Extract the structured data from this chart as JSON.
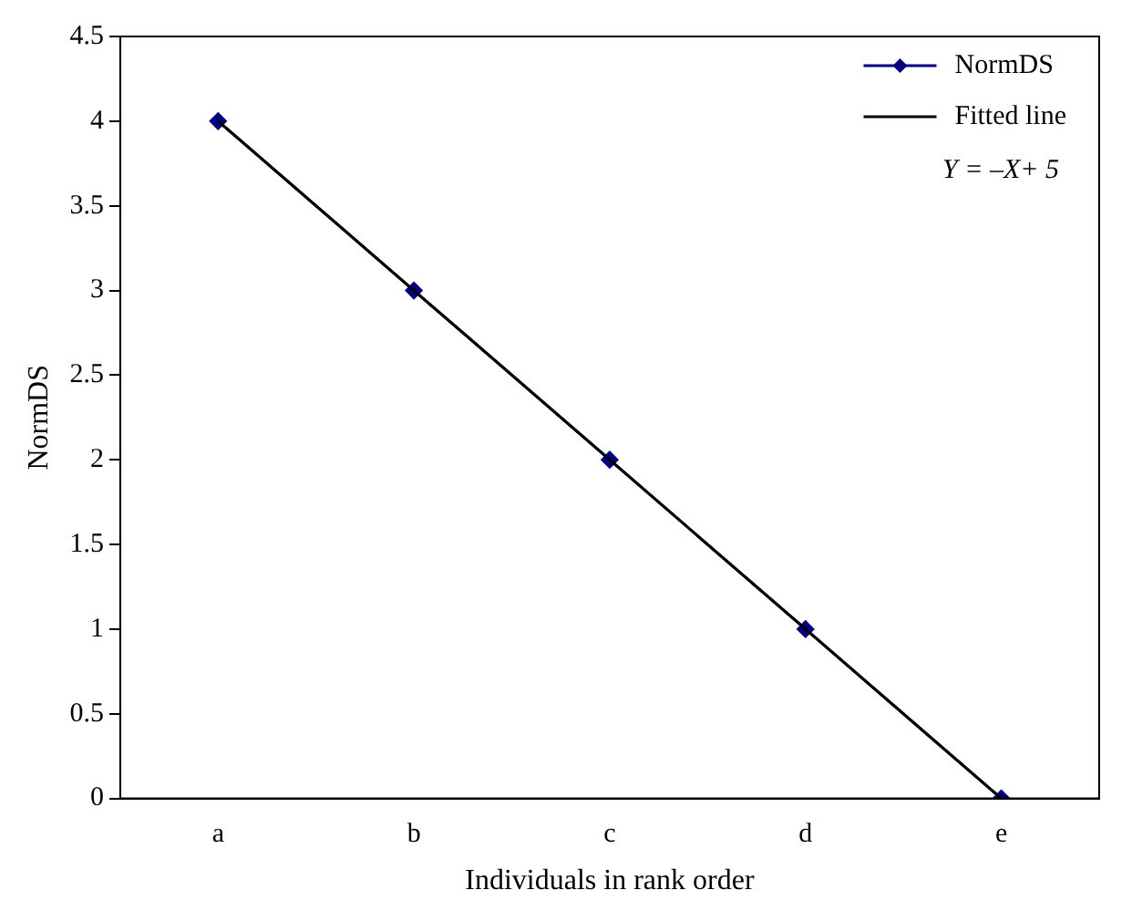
{
  "chart_data": {
    "type": "line",
    "xlabel": "Individuals in rank order",
    "ylabel": "NormDS",
    "categories": [
      "a",
      "b",
      "c",
      "d",
      "e"
    ],
    "series": [
      {
        "name": "NormDS",
        "color": "#000080",
        "values": [
          4,
          3,
          2,
          1,
          0
        ],
        "marker": "diamond"
      },
      {
        "name": "Fitted line",
        "color": "#000000",
        "values": [
          4,
          3,
          2,
          1,
          0
        ],
        "marker": "none"
      }
    ],
    "ylim": [
      0,
      4.5
    ],
    "yticks": [
      0,
      0.5,
      1,
      1.5,
      2,
      2.5,
      3,
      3.5,
      4,
      4.5
    ],
    "grid": false,
    "legend": "top right",
    "line_style": "solid",
    "annotations": [
      "Y = –X+ 5"
    ]
  }
}
